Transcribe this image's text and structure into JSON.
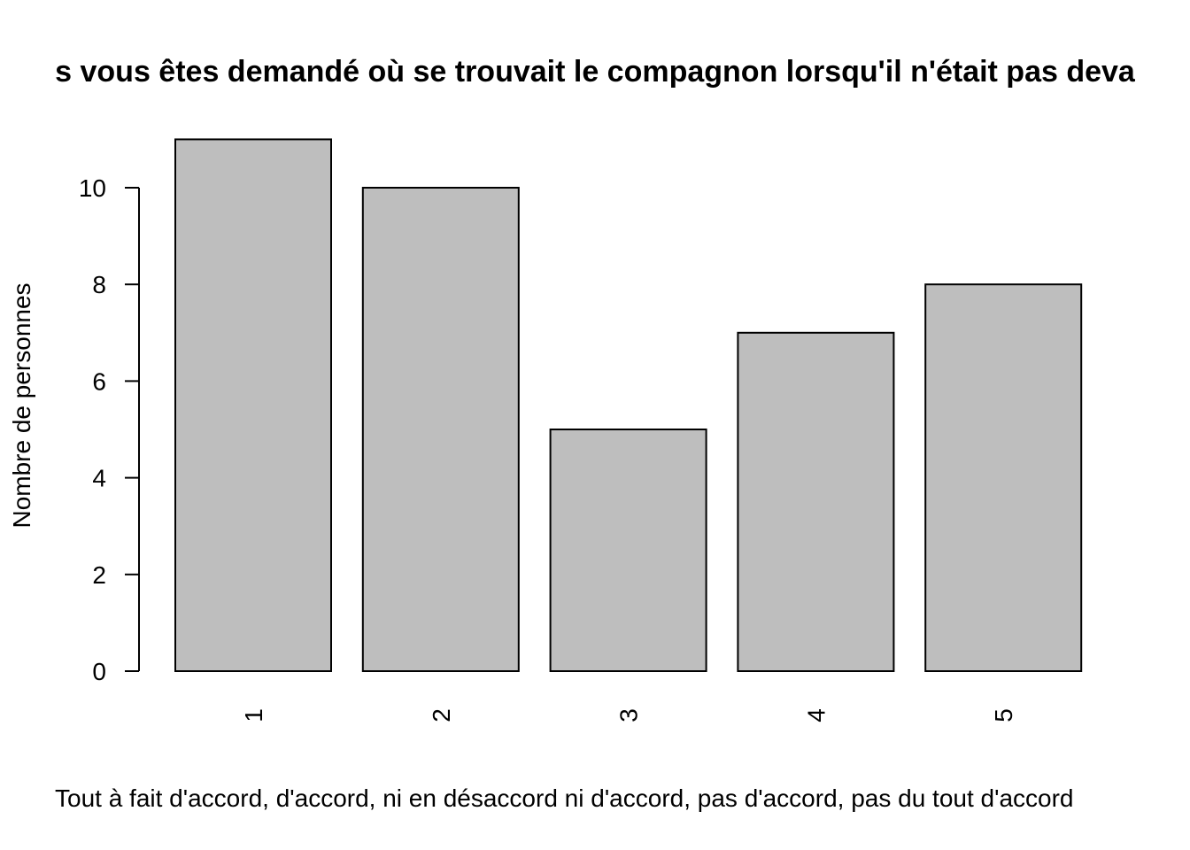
{
  "chart_data": {
    "type": "bar",
    "title": "s vous êtes demandé où se trouvait le compagnon lorsqu'il n'était pas deva",
    "xlabel": "Tout à fait d'accord, d'accord, ni en désaccord ni d'accord, pas d'accord, pas du tout d'accord",
    "ylabel": "Nombre de personnes",
    "categories": [
      "1",
      "2",
      "3",
      "4",
      "5"
    ],
    "values": [
      11,
      10,
      5,
      7,
      8
    ],
    "y_ticks": [
      "0",
      "2",
      "4",
      "6",
      "8",
      "10"
    ],
    "ylim": [
      0,
      11
    ],
    "bar_color": "#bebebe",
    "grid": false,
    "legend": "none"
  }
}
